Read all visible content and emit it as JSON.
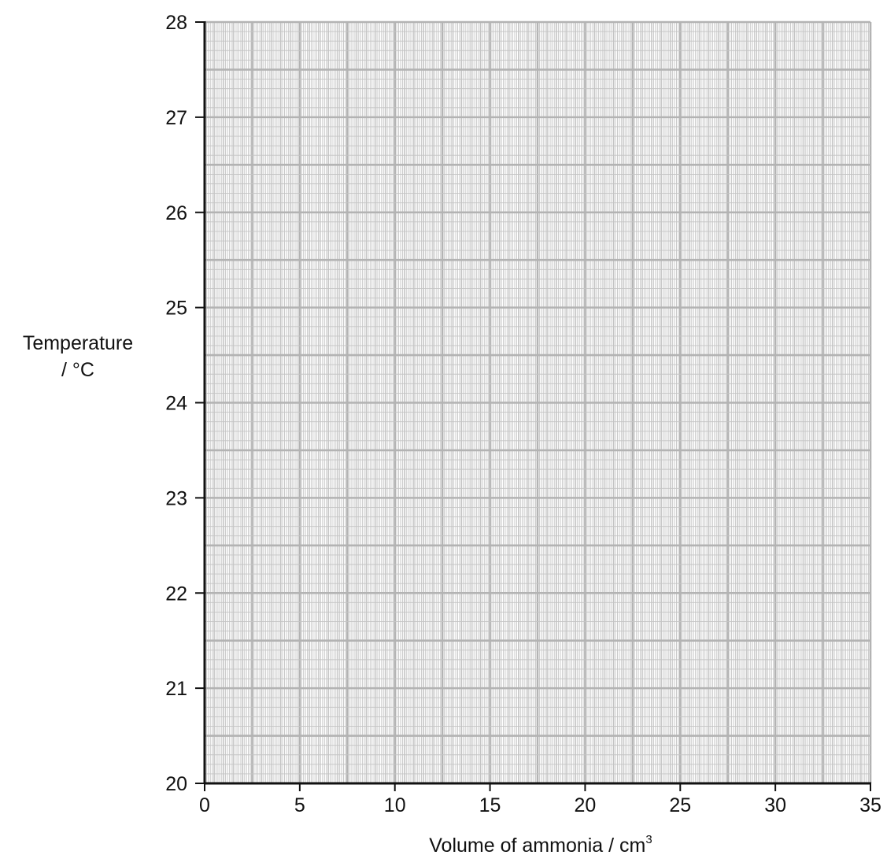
{
  "chart_data": {
    "type": "line",
    "title": "",
    "xlabel": "Volume of ammonia / cm",
    "xlabel_superscript": "3",
    "ylabel_line1": "Temperature",
    "ylabel_line2": "/ °C",
    "xlim": [
      0,
      35
    ],
    "ylim": [
      20,
      28
    ],
    "x_ticks": [
      "0",
      "5",
      "10",
      "15",
      "20",
      "25",
      "30",
      "35"
    ],
    "y_ticks": [
      "20",
      "21",
      "22",
      "23",
      "24",
      "25",
      "26",
      "27",
      "28"
    ],
    "grid": true,
    "grid_type": "graph paper",
    "series": [],
    "colors": {
      "major_grid": "#b3b3b3",
      "minor_grid": "#c4c4c4",
      "axis": "#111111"
    }
  }
}
